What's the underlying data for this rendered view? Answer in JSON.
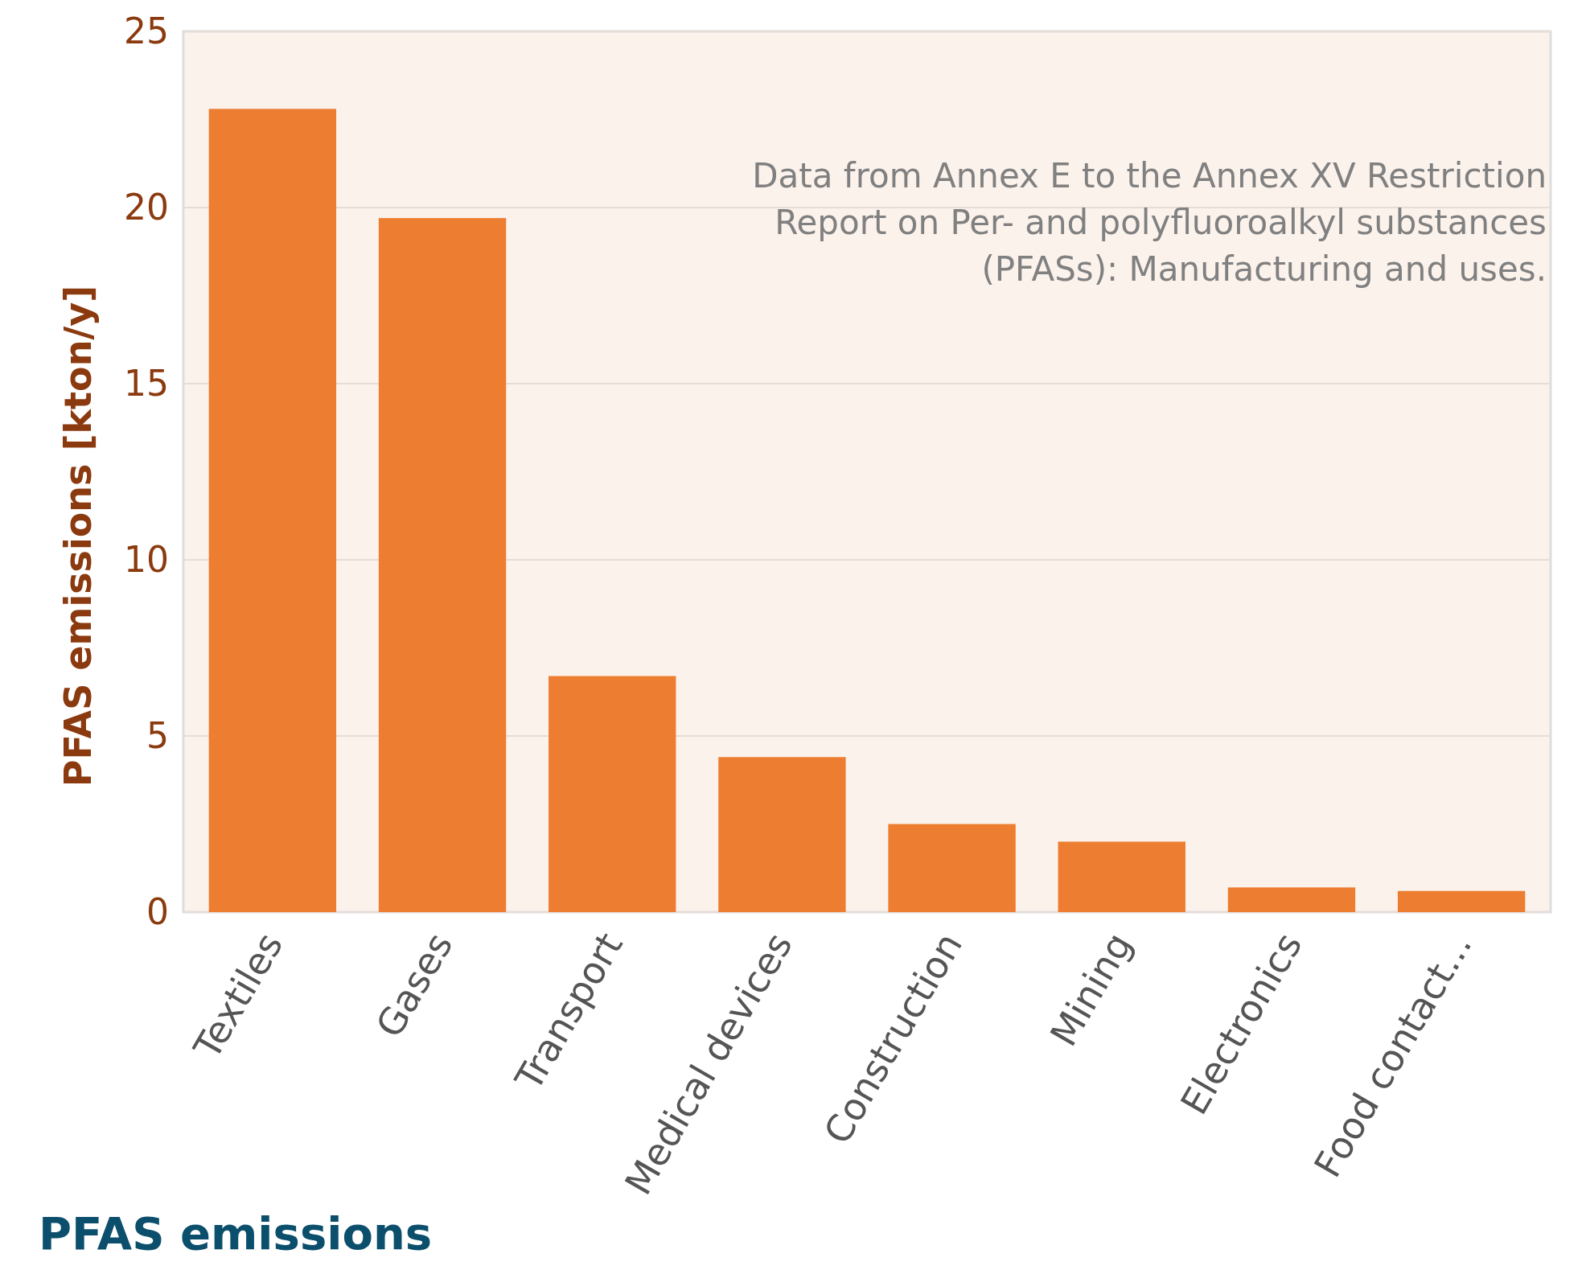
{
  "chart_data": {
    "type": "bar",
    "title": "PFAS emissions",
    "ylabel": "PFAS emissions [kton/y]",
    "categories": [
      "Textiles",
      "Gases",
      "Transport",
      "Medical devices",
      "Construction",
      "Mining",
      "Electronics",
      "Food contact..."
    ],
    "values": [
      22.8,
      19.7,
      6.7,
      4.4,
      2.5,
      2.0,
      0.7,
      0.6
    ],
    "color": "#ed7d31",
    "ylim": [
      0,
      25
    ],
    "yticks": [
      0,
      5,
      10,
      15,
      20,
      25
    ],
    "grid": "y",
    "annotations": [
      "Data from Annex E to the Annex XV Restriction\nReport on Per- and polyfluoroalkyl substances\n(PFASs): Manufacturing and uses."
    ]
  }
}
